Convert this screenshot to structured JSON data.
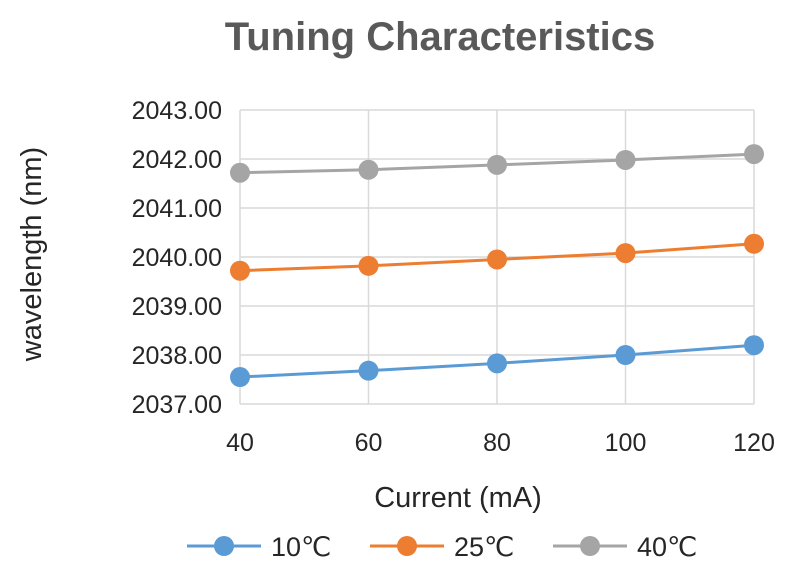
{
  "chart_data": {
    "type": "line",
    "title": "Tuning Characteristics",
    "xlabel": "Current (mA)",
    "ylabel": "wavelength (nm)",
    "x": [
      40,
      60,
      80,
      100,
      120
    ],
    "x_tick_labels": [
      "40",
      "60",
      "80",
      "100",
      "120"
    ],
    "xlim": [
      40,
      120
    ],
    "ylim": [
      2037,
      2043
    ],
    "y_tick_labels": [
      "2043.00",
      "2042.00",
      "2041.00",
      "2040.00",
      "2039.00",
      "2038.00",
      "2037.00"
    ],
    "y_ticks": [
      2043,
      2042,
      2041,
      2040,
      2039,
      2038,
      2037
    ],
    "grid": true,
    "legend_position": "bottom",
    "series": [
      {
        "name": "10℃",
        "color": "#5B9BD5",
        "values": [
          2037.55,
          2037.68,
          2037.83,
          2038.0,
          2038.2
        ]
      },
      {
        "name": "25℃",
        "color": "#ED7D31",
        "values": [
          2039.72,
          2039.82,
          2039.95,
          2040.08,
          2040.27
        ]
      },
      {
        "name": "40℃",
        "color": "#A5A5A5",
        "values": [
          2041.72,
          2041.78,
          2041.88,
          2041.98,
          2042.1
        ]
      }
    ]
  }
}
